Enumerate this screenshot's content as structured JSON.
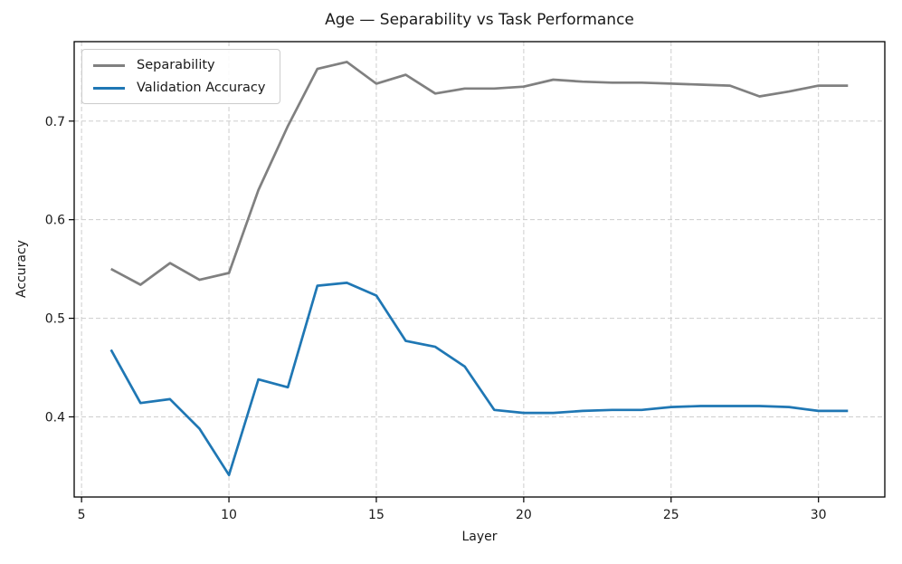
{
  "chart_data": {
    "type": "line",
    "title": "Age — Separability vs Task Performance",
    "xlabel": "Layer",
    "ylabel": "Accuracy",
    "x": [
      6,
      7,
      8,
      9,
      10,
      11,
      12,
      13,
      14,
      15,
      16,
      17,
      18,
      19,
      20,
      21,
      22,
      23,
      24,
      25,
      26,
      27,
      28,
      29,
      30,
      31
    ],
    "series": [
      {
        "name": "Separability",
        "color": "#808080",
        "values": [
          0.55,
          0.534,
          0.556,
          0.539,
          0.546,
          0.63,
          0.695,
          0.753,
          0.76,
          0.738,
          0.747,
          0.728,
          0.733,
          0.733,
          0.735,
          0.742,
          0.74,
          0.739,
          0.739,
          0.738,
          0.737,
          0.736,
          0.725,
          0.73,
          0.736,
          0.736
        ]
      },
      {
        "name": "Validation Accuracy",
        "color": "#1f77b4",
        "values": [
          0.468,
          0.414,
          0.418,
          0.388,
          0.341,
          0.438,
          0.43,
          0.533,
          0.536,
          0.523,
          0.477,
          0.471,
          0.451,
          0.407,
          0.404,
          0.404,
          0.406,
          0.407,
          0.407,
          0.41,
          0.411,
          0.411,
          0.411,
          0.41,
          0.406,
          0.406
        ]
      }
    ],
    "xlim": [
      4.75,
      32.25
    ],
    "ylim": [
      0.3187,
      0.7806
    ],
    "xticks": [
      5,
      10,
      15,
      20,
      25,
      30
    ],
    "yticks": [
      0.4,
      0.5,
      0.6,
      0.7
    ],
    "grid": true,
    "grid_style": "dashed",
    "grid_color": "#cdcdcd",
    "spine_color": "#000000",
    "tick_label_color": "#1a1a1a",
    "legend_position": "upper left"
  }
}
